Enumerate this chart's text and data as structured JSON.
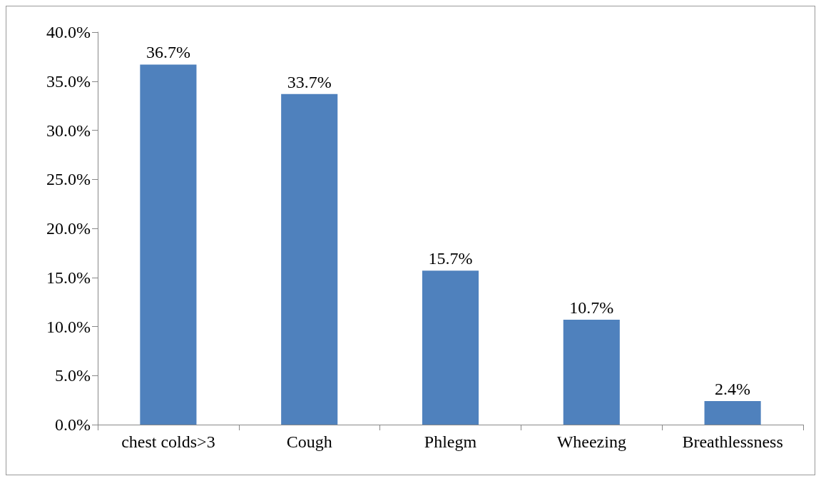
{
  "chart_data": {
    "type": "bar",
    "categories": [
      "chest colds>3",
      "Cough",
      "Phlegm",
      "Wheezing",
      "Breathlessness"
    ],
    "values": [
      36.7,
      33.7,
      15.7,
      10.7,
      2.4
    ],
    "value_labels": [
      "36.7%",
      "33.7%",
      "15.7%",
      "10.7%",
      "2.4%"
    ],
    "color": "#4f81bd",
    "ylim": [
      0,
      40
    ],
    "yticks": [
      {
        "value": 0,
        "label": "0.0%"
      },
      {
        "value": 5,
        "label": "5.0%"
      },
      {
        "value": 10,
        "label": "10.0%"
      },
      {
        "value": 15,
        "label": "15.0%"
      },
      {
        "value": 20,
        "label": "20.0%"
      },
      {
        "value": 25,
        "label": "25.0%"
      },
      {
        "value": 30,
        "label": "30.0%"
      },
      {
        "value": 35,
        "label": "35.0%"
      },
      {
        "value": 40,
        "label": "40.0%"
      }
    ],
    "grid": false
  }
}
